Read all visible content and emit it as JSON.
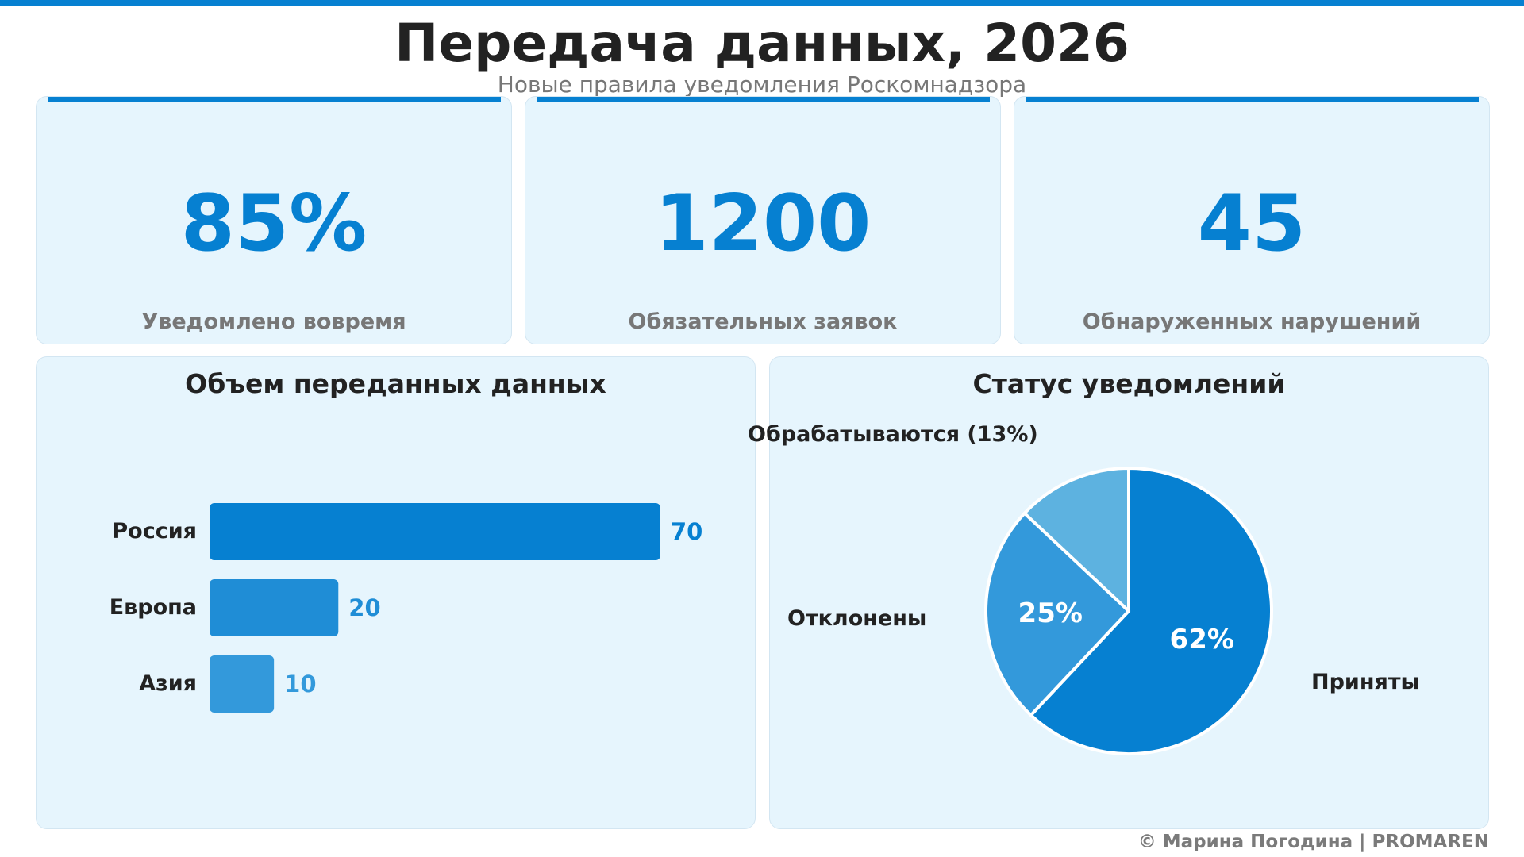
{
  "header": {
    "title": "Передача данных, 2026",
    "subtitle": "Новые правила уведомления Роскомнадзора"
  },
  "kpis": [
    {
      "value": "85%",
      "label": "Уведомлено вовремя"
    },
    {
      "value": "1200",
      "label": "Обязательных заявок"
    },
    {
      "value": "45",
      "label": "Обнаруженных нарушений"
    }
  ],
  "chart_data": [
    {
      "type": "bar",
      "orientation": "horizontal",
      "title": "Объем переданных данных",
      "categories": [
        "Россия",
        "Европа",
        "Азия"
      ],
      "values": [
        70,
        20,
        10
      ],
      "value_labels": [
        "70",
        "20",
        "10"
      ],
      "colors": [
        "#0680d1",
        "#1f8dd6",
        "#3399db"
      ]
    },
    {
      "type": "pie",
      "title": "Статус уведомлений",
      "slices": [
        {
          "label": "Приняты",
          "value": 62,
          "pct_text": "62%",
          "color": "#0680d1"
        },
        {
          "label": "Отклонены",
          "value": 25,
          "pct_text": "25%",
          "color": "#3399db"
        },
        {
          "label": "Обрабатываются (13%)",
          "value": 13,
          "pct_text": "",
          "color": "#5db2e0"
        }
      ]
    }
  ],
  "footer": {
    "credit": "© Марина Погодина | PROMAREN"
  },
  "colors": {
    "accent": "#0680d1",
    "card_bg": "#e6f5fd",
    "muted_text": "#777777"
  }
}
